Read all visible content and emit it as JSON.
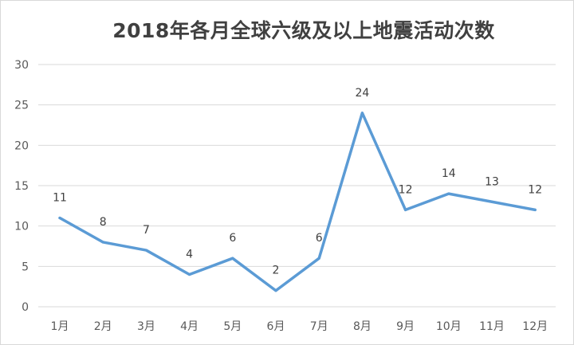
{
  "chart_data": {
    "type": "line",
    "title": "2018年各月全球六级及以上地震活动次数",
    "categories": [
      "1月",
      "2月",
      "3月",
      "4月",
      "5月",
      "6月",
      "7月",
      "8月",
      "9月",
      "10月",
      "11月",
      "12月"
    ],
    "series": [
      {
        "values": [
          11,
          8,
          7,
          4,
          6,
          2,
          6,
          24,
          12,
          14,
          13,
          12
        ]
      }
    ],
    "ylim": [
      0,
      30
    ],
    "yticks": [
      0,
      5,
      10,
      15,
      20,
      25,
      30
    ],
    "grid": true,
    "legend": "none",
    "data_labels": true,
    "colors": {
      "line": "#5b9bd5",
      "grid": "#d9d9d9",
      "text": "#595959"
    }
  }
}
